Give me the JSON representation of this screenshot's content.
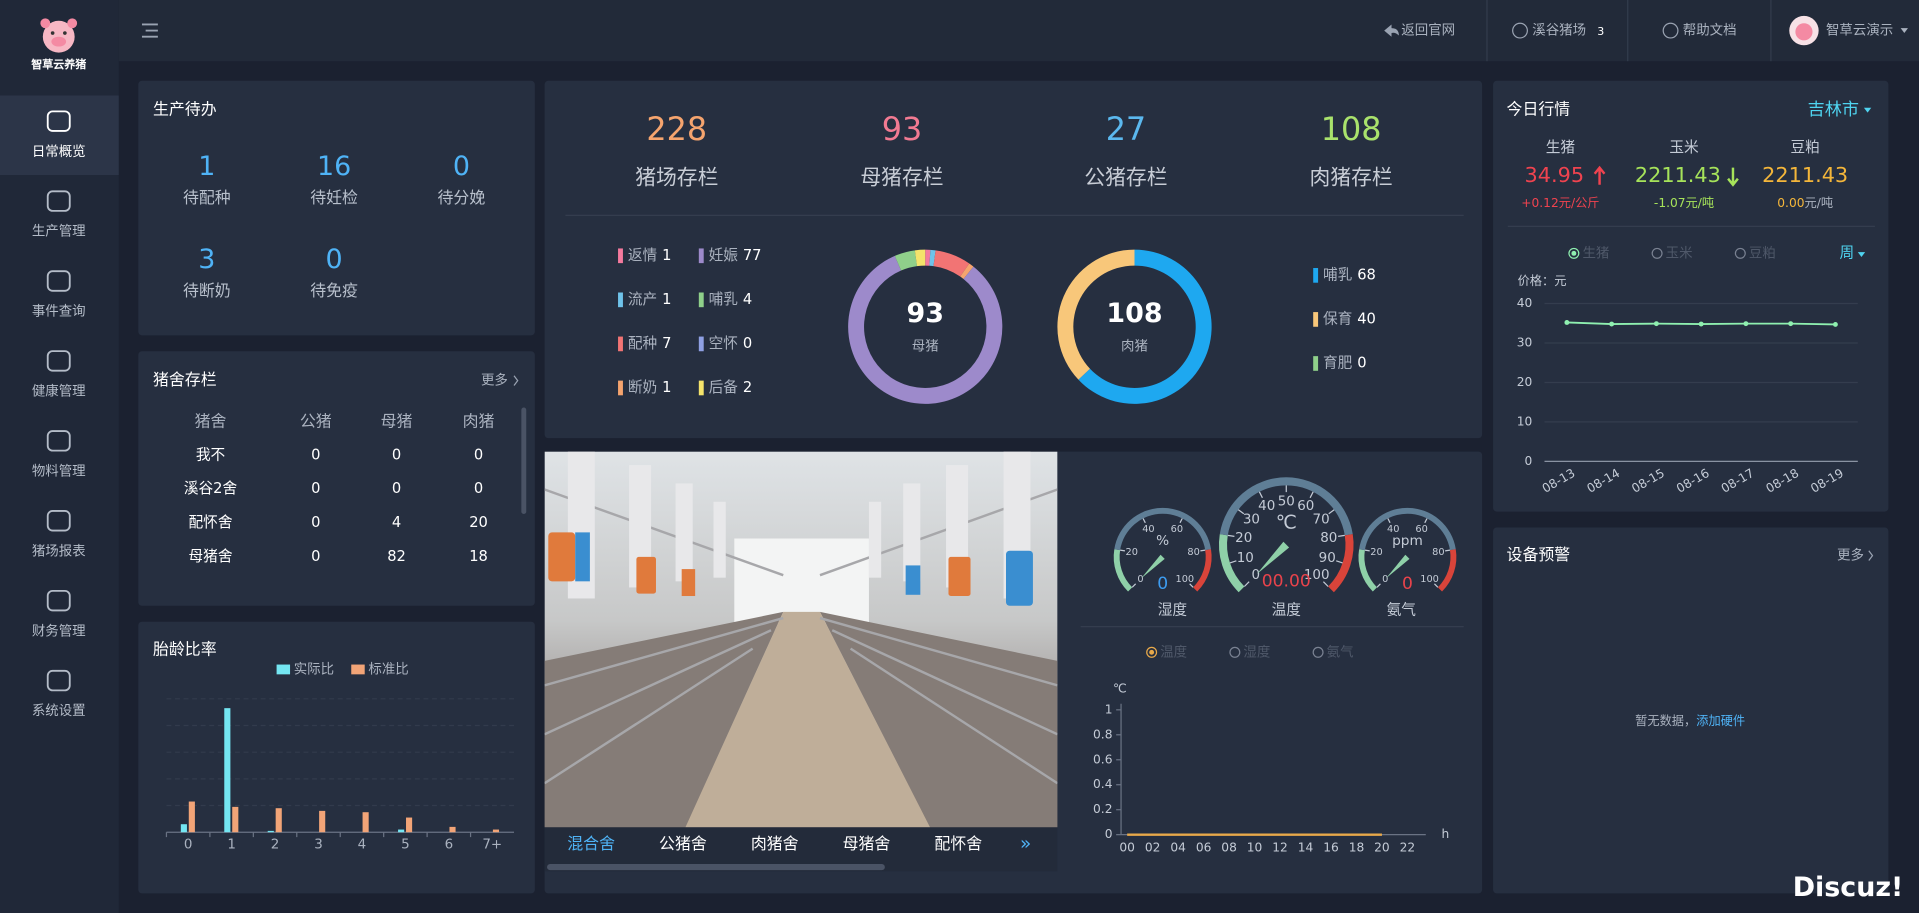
{
  "sidebar": {
    "logo": "智草云养猪",
    "active": 0,
    "menu": [
      "日常概览",
      "生产管理",
      "事件查询",
      "健康管理",
      "物料管理",
      "猪场报表",
      "财务管理",
      "系统设置"
    ]
  },
  "topbar": {
    "back": "返回官网",
    "farm": "溪谷猪场",
    "farm_count": 3,
    "help": "帮助文档",
    "user": "智草云演示"
  },
  "todo": {
    "title": "生产待办",
    "items": [
      {
        "value": 1,
        "label": "待配种"
      },
      {
        "value": 16,
        "label": "待妊检"
      },
      {
        "value": 0,
        "label": "待分娩"
      },
      {
        "value": 3,
        "label": "待断奶"
      },
      {
        "value": 0,
        "label": "待免疫"
      }
    ]
  },
  "pens": {
    "title": "猪舍存栏",
    "more": "更多",
    "columns": [
      "猪舍",
      "公猪",
      "母猪",
      "肉猪"
    ],
    "rows": [
      [
        "我不",
        0,
        0,
        0
      ],
      [
        "溪谷2舍",
        0,
        0,
        0
      ],
      [
        "配怀舍",
        0,
        4,
        20
      ],
      [
        "母猪舍",
        0,
        82,
        18
      ]
    ]
  },
  "parity": {
    "type": "bar",
    "title": "胎龄比率",
    "categories": [
      "0",
      "1",
      "2",
      "3",
      "4",
      "5",
      "6",
      "7+"
    ],
    "ylim": [
      0,
      1
    ],
    "series": [
      {
        "name": "实际比",
        "color": "#74e6f2",
        "values": [
          0.06,
          0.93,
          0.01,
          0,
          0,
          0.02,
          0,
          0
        ]
      },
      {
        "name": "标准比",
        "color": "#f2a477",
        "values": [
          0.23,
          0.19,
          0.18,
          0.16,
          0.15,
          0.11,
          0.04,
          0.02
        ]
      }
    ]
  },
  "stock": {
    "items": [
      {
        "value": 228,
        "label": "猪场存栏",
        "color": "#f5a46e"
      },
      {
        "value": 93,
        "label": "母猪存栏",
        "color": "#f27a92"
      },
      {
        "value": 27,
        "label": "公猪存栏",
        "color": "#5bb8ee"
      },
      {
        "value": 108,
        "label": "肉猪存栏",
        "color": "#a9e26c"
      }
    ]
  },
  "sow_donut": {
    "type": "pie",
    "center_value": 93,
    "center_label": "母猪",
    "categories": [
      "返情",
      "流产",
      "配种",
      "断奶",
      "妊娠",
      "哺乳",
      "空怀",
      "后备"
    ],
    "values": [
      1,
      1,
      7,
      1,
      77,
      4,
      0,
      2
    ],
    "colors": [
      "#f47a9e",
      "#6fc3ea",
      "#f27474",
      "#f5a46e",
      "#9d8acb",
      "#8fd08a",
      "#8fa0e3",
      "#f4e36b"
    ]
  },
  "meat_donut": {
    "type": "pie",
    "center_value": 108,
    "center_label": "肉猪",
    "categories": [
      "哺乳",
      "保育",
      "育肥"
    ],
    "values": [
      68,
      40,
      0
    ],
    "colors": [
      "#1ea8f0",
      "#f8c77a",
      "#8fd08a"
    ]
  },
  "camera": {
    "tabs": [
      "混合舍",
      "公猪舍",
      "肉猪舍",
      "母猪舍",
      "配怀舍"
    ],
    "active": 0
  },
  "environment": {
    "gauges": [
      {
        "name": "湿度",
        "unit": "%",
        "value": 0,
        "range": [
          0,
          100
        ],
        "ticks": [
          0,
          20,
          40,
          60,
          80,
          100
        ],
        "color": "#3d9cf0"
      },
      {
        "name": "温度",
        "unit": "℃",
        "value": 0,
        "value_label": "00.00",
        "range": [
          0,
          100
        ],
        "ticks": [
          0,
          10,
          20,
          30,
          40,
          50,
          60,
          70,
          80,
          90,
          100
        ],
        "color": "#e8434b"
      },
      {
        "name": "氨气",
        "unit": "ppm",
        "value": 0,
        "range": [
          0,
          100
        ],
        "ticks": [
          0,
          20,
          40,
          60,
          80,
          100
        ],
        "color": "#e8434b"
      }
    ],
    "chart": {
      "type": "line",
      "options": [
        "温度",
        "湿度",
        "氨气"
      ],
      "active": 0,
      "y_unit": "℃",
      "x_unit": "h",
      "categories": [
        "00",
        "02",
        "04",
        "06",
        "08",
        "10",
        "12",
        "14",
        "16",
        "18",
        "20",
        "22"
      ],
      "values": [
        0,
        0,
        0,
        0,
        0,
        0,
        0,
        0,
        0,
        0,
        0,
        null
      ],
      "color": "#e8a94a",
      "ylim": [
        0,
        1
      ],
      "yticks": [
        0,
        0.2,
        0.4,
        0.6,
        0.8,
        1
      ]
    }
  },
  "market": {
    "title": "今日行情",
    "city": "吉林市",
    "items": [
      {
        "name": "生猪",
        "price": 34.95,
        "change": {
          "value": 0.12,
          "label": "+0.12"
        },
        "unit": "元/公斤",
        "color": "#f0434f",
        "trend": "up"
      },
      {
        "name": "玉米",
        "price": 2211.43,
        "change": {
          "value": -1.07,
          "label": "-1.07"
        },
        "unit": "元/吨",
        "color": "#a6e35a",
        "trend": "down"
      },
      {
        "name": "豆粕",
        "price": 2211.43,
        "change": {
          "value": 0,
          "label": "0.00"
        },
        "unit": "元/吨",
        "color": "#f4b63a",
        "trend": "flat"
      }
    ],
    "chart": {
      "type": "line",
      "options": [
        "生猪",
        "玉米",
        "豆粕"
      ],
      "active": 0,
      "period": "周",
      "y_label": "价格：元",
      "categories": [
        "08-13",
        "08-14",
        "08-15",
        "08-16",
        "08-17",
        "08-18",
        "08-19"
      ],
      "values": [
        35.2,
        34.8,
        34.9,
        34.8,
        34.9,
        34.9,
        34.7
      ],
      "color": "#8ff0b0",
      "ylim": [
        0,
        40
      ],
      "yticks": [
        0,
        10,
        20,
        30,
        40
      ],
      "grid": true
    }
  },
  "alerts": {
    "title": "设备预警",
    "more": "更多",
    "empty": "暂无数据，",
    "link": "添加硬件"
  },
  "watermark": "Discuz!"
}
